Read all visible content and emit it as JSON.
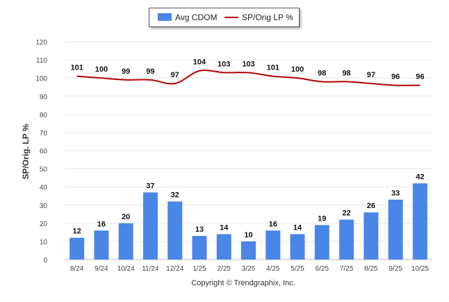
{
  "chart_data": {
    "type": "bar",
    "categories": [
      "8/24",
      "9/24",
      "10/24",
      "11/24",
      "12/24",
      "1/25",
      "2/25",
      "3/25",
      "4/25",
      "5/25",
      "6/25",
      "7/25",
      "8/25",
      "9/25",
      "10/25"
    ],
    "series": [
      {
        "name": "Avg CDOM",
        "kind": "bar",
        "color": "#4a86e8",
        "values": [
          12,
          16,
          20,
          37,
          32,
          13,
          14,
          10,
          16,
          14,
          19,
          22,
          26,
          33,
          42
        ]
      },
      {
        "name": "SP/Orig LP %",
        "kind": "line",
        "color": "#b30000",
        "values": [
          101,
          100,
          99,
          99,
          97,
          104,
          103,
          103,
          101,
          100,
          98,
          98,
          97,
          96,
          96
        ]
      }
    ],
    "ylabel": "SP/Orig. LP %",
    "ylim": [
      0,
      120
    ],
    "yticks": [
      0,
      10,
      20,
      30,
      40,
      50,
      60,
      70,
      80,
      90,
      100,
      110,
      120
    ],
    "grid": true,
    "legend_position": "top-center"
  },
  "footer": {
    "copyright": "Copyright © Trendgraphix, Inc."
  }
}
